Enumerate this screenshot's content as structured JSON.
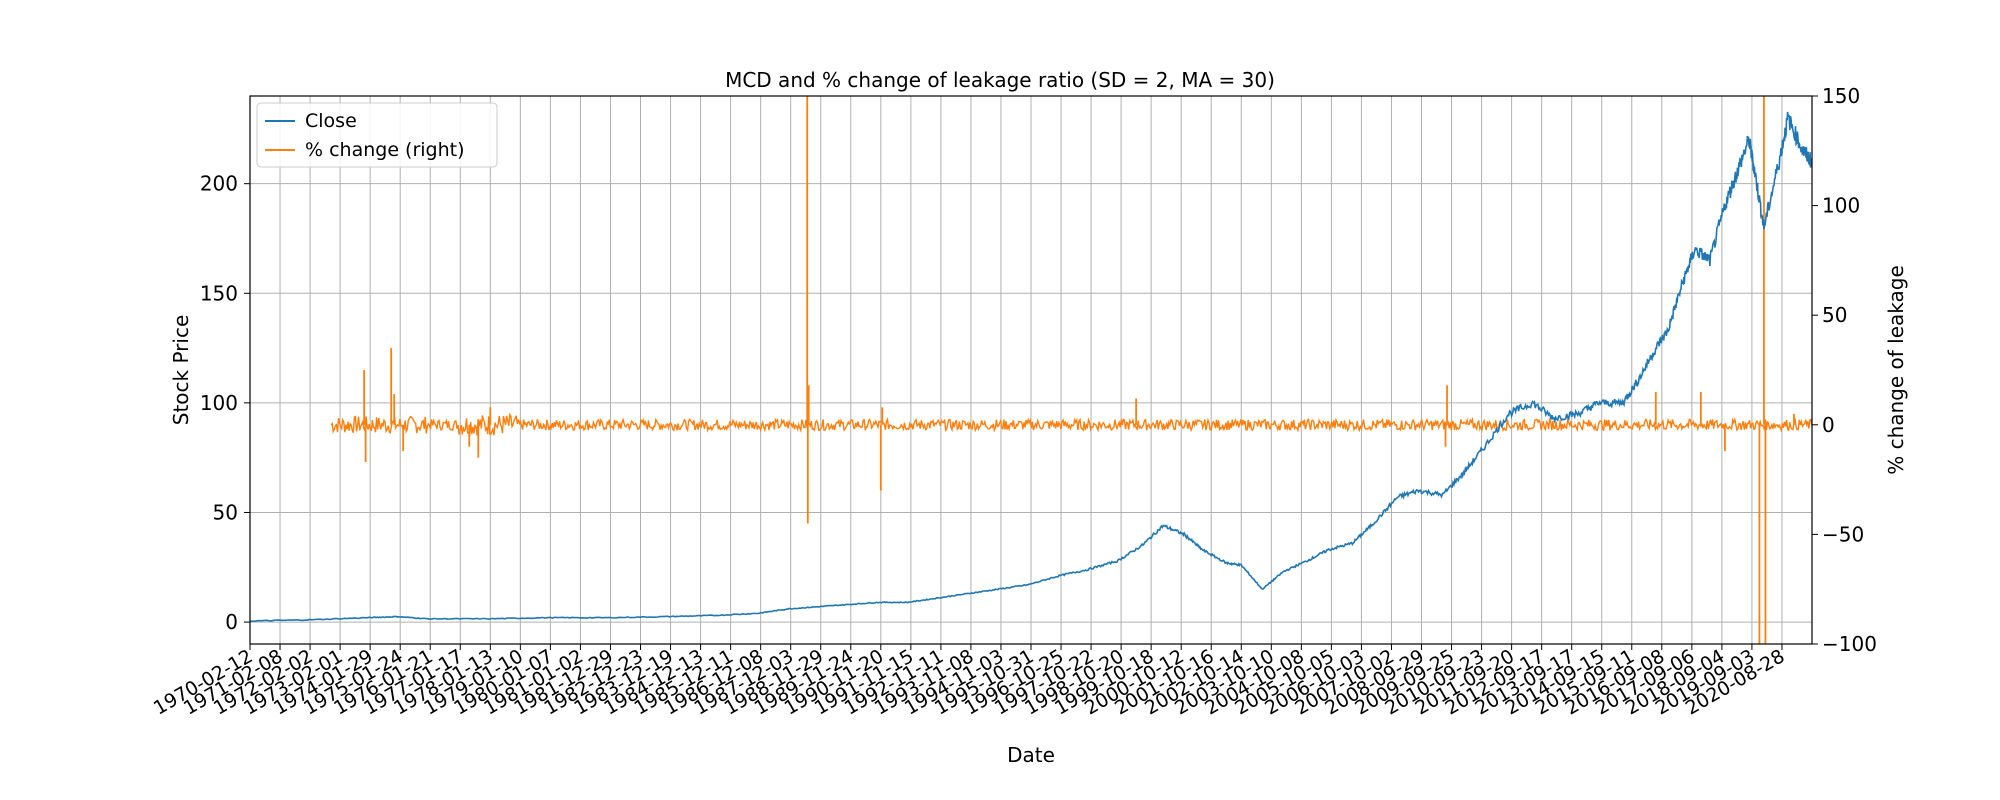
{
  "chart_data": {
    "type": "line",
    "title": "MCD and % change of leakage ratio (SD = 2, MA = 30)",
    "xlabel": "Date",
    "ylabel": "Stock Price",
    "ylabel_right": "% change of leakage",
    "grid": true,
    "legend_position": "top-left",
    "x_tick_labels": [
      "1970-02-12",
      "1971-02-08",
      "1972-02-02",
      "1973-02-01",
      "1974-01-29",
      "1975-01-24",
      "1976-01-21",
      "1977-01-17",
      "1978-01-13",
      "1979-01-10",
      "1980-01-07",
      "1981-01-02",
      "1981-12-29",
      "1982-12-23",
      "1983-12-19",
      "1984-12-13",
      "1985-12-11",
      "1986-12-08",
      "1987-12-03",
      "1988-11-29",
      "1989-11-24",
      "1990-11-20",
      "1991-11-15",
      "1992-11-11",
      "1993-11-08",
      "1994-11-03",
      "1995-10-31",
      "1996-10-25",
      "1997-10-22",
      "1998-10-20",
      "1999-10-18",
      "2000-10-12",
      "2001-10-16",
      "2002-10-14",
      "2003-10-10",
      "2004-10-08",
      "2005-10-05",
      "2006-10-03",
      "2007-10-02",
      "2008-09-29",
      "2009-09-25",
      "2010-09-23",
      "2011-09-20",
      "2012-09-17",
      "2013-09-17",
      "2014-09-15",
      "2015-09-11",
      "2016-09-08",
      "2017-09-06",
      "2018-09-04",
      "2019-09-03",
      "2020-08-28"
    ],
    "y_left": {
      "min": -10,
      "max": 240,
      "ticks": [
        0,
        50,
        100,
        150,
        200
      ]
    },
    "y_right": {
      "min": -100,
      "max": 150,
      "ticks": [
        -100,
        -50,
        0,
        50,
        100,
        150
      ]
    },
    "series": [
      {
        "name": "Close",
        "color": "#1f77b4",
        "axis": "left",
        "x": [
          1970.1,
          1972,
          1974,
          1975,
          1976,
          1978,
          1980,
          1982,
          1984,
          1985.5,
          1987,
          1988,
          1989,
          1990,
          1991,
          1992,
          1993,
          1994,
          1995,
          1996,
          1997,
          1998,
          1999,
          1999.8,
          2000.5,
          2001.2,
          2001.8,
          2002.6,
          2003.1,
          2003.8,
          2004.5,
          2005.3,
          2006,
          2006.8,
          2007.5,
          2008.3,
          2009,
          2009.8,
          2010.5,
          2011.2,
          2012,
          2012.8,
          2013.5,
          2014.3,
          2015,
          2015.8,
          2016.3,
          2016.9,
          2017.3,
          2017.8,
          2018.2,
          2018.7,
          2019.2,
          2019.6,
          2020,
          2020.2,
          2020.5,
          2021,
          2021.3,
          2021.8,
          2022.1
        ],
        "y": [
          0.5,
          1,
          2,
          2.5,
          1.5,
          1.5,
          2,
          2,
          2.5,
          3,
          4,
          6,
          7,
          8,
          9,
          9,
          11,
          13,
          15,
          17,
          21,
          24,
          28,
          35,
          44,
          40,
          33,
          27,
          26,
          15,
          23,
          28,
          33,
          36,
          45,
          57,
          60,
          58,
          68,
          80,
          95,
          100,
          93,
          95,
          100,
          100,
          110,
          125,
          133,
          155,
          170,
          165,
          190,
          205,
          220,
          205,
          180,
          210,
          230,
          215,
          210
        ]
      },
      {
        "name": "% change (right)",
        "color": "#ff7f0e",
        "axis": "right",
        "x_start": 1972.8,
        "x_end": 2022.1,
        "baseline": 0,
        "spikes": [
          {
            "x": 1973.9,
            "y": 25
          },
          {
            "x": 1973.95,
            "y": -17
          },
          {
            "x": 1974.8,
            "y": 35
          },
          {
            "x": 1974.9,
            "y": 14
          },
          {
            "x": 1975.2,
            "y": -12
          },
          {
            "x": 1977.4,
            "y": -10
          },
          {
            "x": 1977.7,
            "y": -15
          },
          {
            "x": 1978.1,
            "y": 8
          },
          {
            "x": 1988.65,
            "y": 150
          },
          {
            "x": 1988.67,
            "y": -45
          },
          {
            "x": 1988.7,
            "y": 18
          },
          {
            "x": 1991.1,
            "y": -30
          },
          {
            "x": 1991.15,
            "y": 8
          },
          {
            "x": 1999.6,
            "y": 12
          },
          {
            "x": 2009.95,
            "y": 18
          },
          {
            "x": 2009.9,
            "y": -10
          },
          {
            "x": 2016.9,
            "y": 15
          },
          {
            "x": 2018.4,
            "y": 15
          },
          {
            "x": 2019.2,
            "y": -12
          },
          {
            "x": 2020.35,
            "y": -100
          },
          {
            "x": 2020.5,
            "y": 150
          },
          {
            "x": 2020.55,
            "y": -100
          },
          {
            "x": 2021.5,
            "y": 5
          }
        ]
      }
    ]
  }
}
